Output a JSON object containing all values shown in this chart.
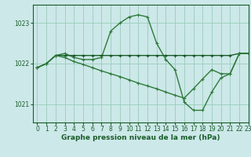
{
  "background_color": "#cce8e8",
  "grid_color": "#99ccbb",
  "line_color_dark": "#1a5c2a",
  "xlim": [
    -0.5,
    23
  ],
  "ylim": [
    1020.55,
    1023.45
  ],
  "yticks": [
    1021,
    1022,
    1023
  ],
  "xticks": [
    0,
    1,
    2,
    3,
    4,
    5,
    6,
    7,
    8,
    9,
    10,
    11,
    12,
    13,
    14,
    15,
    16,
    17,
    18,
    19,
    20,
    21,
    22,
    23
  ],
  "xlabel": "Graphe pression niveau de la mer (hPa)",
  "series": [
    {
      "x": [
        0,
        1,
        2,
        3,
        4,
        5,
        6,
        7,
        8,
        9,
        10,
        11,
        12,
        13,
        14,
        15,
        16,
        17,
        18,
        19,
        20,
        21,
        22,
        23
      ],
      "y": [
        1021.9,
        1022.0,
        1022.2,
        1022.25,
        1022.15,
        1022.1,
        1022.1,
        1022.15,
        1022.8,
        1023.0,
        1023.15,
        1023.2,
        1023.15,
        1022.5,
        1022.1,
        1021.85,
        1021.05,
        1020.85,
        1020.85,
        1021.3,
        1021.65,
        1021.75,
        1022.25,
        1022.25
      ],
      "color": "#2d7a3a",
      "lw": 1.0
    },
    {
      "x": [
        0,
        1,
        2,
        3,
        4,
        5,
        6,
        7,
        8,
        9,
        10,
        11,
        12,
        13,
        14,
        15,
        16,
        17,
        18,
        19,
        20,
        21,
        22,
        23
      ],
      "y": [
        1021.9,
        1022.0,
        1022.2,
        1022.2,
        1022.2,
        1022.2,
        1022.2,
        1022.2,
        1022.2,
        1022.2,
        1022.2,
        1022.2,
        1022.2,
        1022.2,
        1022.2,
        1022.2,
        1022.2,
        1022.2,
        1022.2,
        1022.2,
        1022.2,
        1022.2,
        1022.25,
        1022.25
      ],
      "color": "#1a5c2a",
      "lw": 1.0
    },
    {
      "x": [
        0,
        1,
        2,
        3,
        4,
        5,
        6,
        7,
        8,
        9,
        10,
        11,
        12,
        13,
        14,
        15,
        16,
        17,
        18,
        19,
        20,
        21,
        22,
        23
      ],
      "y": [
        1021.9,
        1022.0,
        1022.2,
        1022.15,
        1022.05,
        1021.98,
        1021.9,
        1021.82,
        1021.75,
        1021.68,
        1021.6,
        1021.52,
        1021.45,
        1021.38,
        1021.3,
        1021.22,
        1021.15,
        1021.38,
        1021.62,
        1021.85,
        1021.75,
        1021.75,
        1022.25,
        1022.25
      ],
      "color": "#2d7a3a",
      "lw": 1.0
    }
  ],
  "marker": "+",
  "marker_size": 3.5,
  "marker_lw": 0.8,
  "label_fontsize": 6.5,
  "tick_fontsize": 5.5
}
